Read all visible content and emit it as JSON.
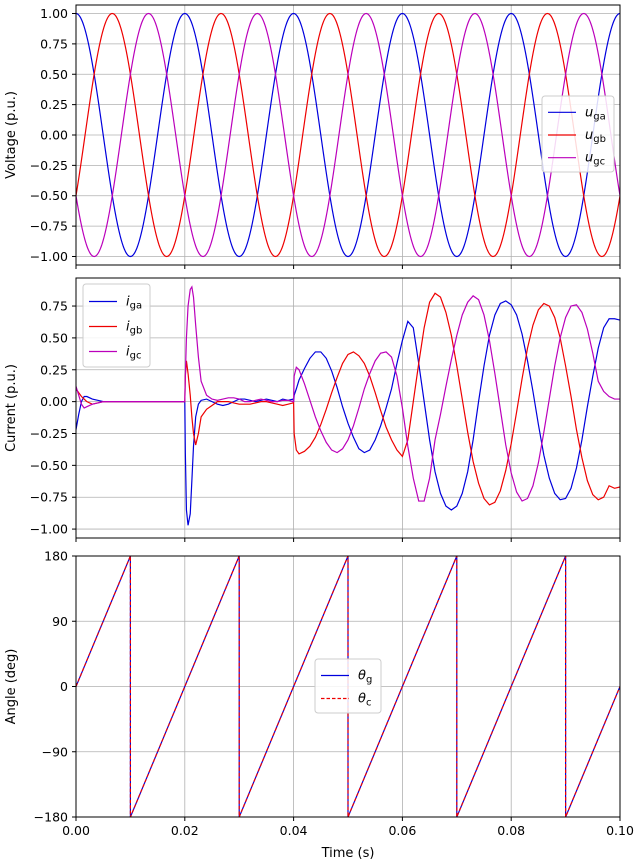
{
  "chart_data": [
    {
      "type": "line",
      "panel": "voltage",
      "ylabel": "Voltage (p.u.)",
      "xlabel": "",
      "xlim": [
        0,
        0.1
      ],
      "ylim": [
        -1.07,
        1.07
      ],
      "xticks": [
        0,
        0.02,
        0.04,
        0.06,
        0.08,
        0.1
      ],
      "xtick_labels": [
        "",
        "",
        "",
        "",
        "",
        ""
      ],
      "yticks": [
        -1,
        -0.75,
        -0.5,
        -0.25,
        0,
        0.25,
        0.5,
        0.75,
        1
      ],
      "ytick_labels": [
        "−1.00",
        "−0.75",
        "−0.50",
        "−0.25",
        "0.00",
        "0.25",
        "0.50",
        "0.75",
        "1.00"
      ],
      "grid": true,
      "legend": "right",
      "series": [
        {
          "name": "u",
          "sub": "ga",
          "color": "#0000dd",
          "dash": false,
          "amplitude": 1.0,
          "frequency_hz": 50,
          "phase_deg": 0
        },
        {
          "name": "u",
          "sub": "gb",
          "color": "#ee0000",
          "dash": false,
          "amplitude": 1.0,
          "frequency_hz": 50,
          "phase_deg": -120
        },
        {
          "name": "u",
          "sub": "gc",
          "color": "#bb00bb",
          "dash": false,
          "amplitude": 1.0,
          "frequency_hz": 50,
          "phase_deg": 120
        }
      ]
    },
    {
      "type": "line",
      "panel": "current",
      "ylabel": "Current (p.u.)",
      "xlabel": "",
      "xlim": [
        0,
        0.1
      ],
      "ylim": [
        -1.07,
        0.97
      ],
      "xticks": [
        0,
        0.02,
        0.04,
        0.06,
        0.08,
        0.1
      ],
      "xtick_labels": [
        "",
        "",
        "",
        "",
        "",
        ""
      ],
      "yticks": [
        -1,
        -0.75,
        -0.5,
        -0.25,
        0,
        0.25,
        0.5,
        0.75
      ],
      "ytick_labels": [
        "−1.00",
        "−0.75",
        "−0.50",
        "−0.25",
        "0.00",
        "0.25",
        "0.50",
        "0.75"
      ],
      "grid": true,
      "legend": "top-left",
      "series": [
        {
          "name": "i",
          "sub": "ga",
          "color": "#0000dd",
          "dash": false,
          "x": [
            0,
            0.0005,
            0.001,
            0.0015,
            0.002,
            0.003,
            0.004,
            0.005,
            0.006,
            0.008,
            0.01,
            0.015,
            0.02,
            0.0201,
            0.0203,
            0.0206,
            0.021,
            0.0213,
            0.0216,
            0.022,
            0.0225,
            0.023,
            0.024,
            0.025,
            0.026,
            0.027,
            0.028,
            0.029,
            0.03,
            0.031,
            0.032,
            0.033,
            0.034,
            0.035,
            0.036,
            0.037,
            0.038,
            0.039,
            0.0399,
            0.04,
            0.0401,
            0.0405,
            0.041,
            0.042,
            0.043,
            0.044,
            0.045,
            0.046,
            0.047,
            0.048,
            0.049,
            0.05,
            0.051,
            0.052,
            0.053,
            0.054,
            0.055,
            0.056,
            0.057,
            0.058,
            0.059,
            0.06,
            0.061,
            0.062,
            0.063,
            0.064,
            0.065,
            0.066,
            0.067,
            0.068,
            0.069,
            0.07,
            0.071,
            0.072,
            0.073,
            0.074,
            0.075,
            0.076,
            0.077,
            0.078,
            0.079,
            0.08,
            0.081,
            0.082,
            0.083,
            0.084,
            0.085,
            0.086,
            0.087,
            0.088,
            0.089,
            0.09,
            0.091,
            0.092,
            0.093,
            0.094,
            0.095,
            0.096,
            0.097,
            0.098,
            0.099,
            0.1
          ],
          "y": [
            -0.22,
            -0.1,
            0.0,
            0.04,
            0.04,
            0.02,
            0.01,
            0.0,
            0.0,
            0.0,
            0.0,
            0.0,
            0.0,
            -0.4,
            -0.85,
            -0.97,
            -0.88,
            -0.62,
            -0.35,
            -0.12,
            -0.02,
            0.01,
            0.02,
            0.0,
            -0.02,
            -0.03,
            -0.02,
            0.0,
            0.02,
            0.02,
            0.01,
            0.0,
            0.01,
            0.02,
            0.01,
            0.0,
            0.02,
            0.01,
            0.02,
            0.0,
            0.05,
            0.1,
            0.17,
            0.26,
            0.34,
            0.39,
            0.39,
            0.34,
            0.24,
            0.11,
            -0.04,
            -0.17,
            -0.28,
            -0.37,
            -0.4,
            -0.38,
            -0.3,
            -0.19,
            -0.05,
            0.1,
            0.3,
            0.48,
            0.63,
            0.58,
            0.3,
            0.0,
            -0.3,
            -0.55,
            -0.72,
            -0.82,
            -0.85,
            -0.82,
            -0.72,
            -0.55,
            -0.3,
            0.0,
            0.28,
            0.52,
            0.68,
            0.77,
            0.79,
            0.76,
            0.68,
            0.53,
            0.32,
            0.08,
            -0.18,
            -0.42,
            -0.6,
            -0.72,
            -0.77,
            -0.76,
            -0.68,
            -0.52,
            -0.3,
            -0.04,
            0.2,
            0.42,
            0.58,
            0.65,
            0.65,
            0.64
          ]
        },
        {
          "name": "i",
          "sub": "gb",
          "color": "#ee0000",
          "dash": false,
          "x": [
            0,
            0.0005,
            0.001,
            0.0015,
            0.002,
            0.003,
            0.004,
            0.005,
            0.006,
            0.008,
            0.01,
            0.015,
            0.02,
            0.0201,
            0.0203,
            0.0206,
            0.021,
            0.0213,
            0.0216,
            0.022,
            0.0225,
            0.023,
            0.024,
            0.025,
            0.026,
            0.027,
            0.028,
            0.029,
            0.03,
            0.031,
            0.032,
            0.033,
            0.034,
            0.035,
            0.036,
            0.037,
            0.038,
            0.039,
            0.0399,
            0.04,
            0.0401,
            0.0405,
            0.041,
            0.042,
            0.043,
            0.044,
            0.045,
            0.046,
            0.047,
            0.048,
            0.049,
            0.05,
            0.051,
            0.052,
            0.053,
            0.054,
            0.055,
            0.056,
            0.057,
            0.058,
            0.059,
            0.06,
            0.061,
            0.062,
            0.063,
            0.064,
            0.065,
            0.066,
            0.067,
            0.068,
            0.069,
            0.07,
            0.071,
            0.072,
            0.073,
            0.074,
            0.075,
            0.076,
            0.077,
            0.078,
            0.079,
            0.08,
            0.081,
            0.082,
            0.083,
            0.084,
            0.085,
            0.086,
            0.087,
            0.088,
            0.089,
            0.09,
            0.091,
            0.092,
            0.093,
            0.094,
            0.095,
            0.096,
            0.097,
            0.098,
            0.099,
            0.1
          ],
          "y": [
            0.1,
            0.07,
            0.04,
            0.02,
            0.0,
            -0.02,
            -0.01,
            0.0,
            0.0,
            0.0,
            0.0,
            0.0,
            0.0,
            0.2,
            0.32,
            0.22,
            0.05,
            -0.12,
            -0.25,
            -0.34,
            -0.25,
            -0.12,
            -0.06,
            -0.03,
            0.0,
            0.0,
            0.0,
            -0.01,
            -0.02,
            -0.02,
            -0.02,
            -0.01,
            0.0,
            0.0,
            -0.01,
            -0.02,
            -0.03,
            -0.02,
            -0.01,
            0.0,
            -0.25,
            -0.38,
            -0.41,
            -0.39,
            -0.35,
            -0.28,
            -0.18,
            -0.06,
            0.07,
            0.19,
            0.3,
            0.37,
            0.39,
            0.36,
            0.3,
            0.2,
            0.07,
            -0.07,
            -0.2,
            -0.3,
            -0.38,
            -0.43,
            -0.3,
            -0.0,
            0.3,
            0.58,
            0.78,
            0.85,
            0.82,
            0.7,
            0.52,
            0.28,
            0.02,
            -0.24,
            -0.47,
            -0.64,
            -0.76,
            -0.81,
            -0.79,
            -0.7,
            -0.54,
            -0.33,
            -0.08,
            0.18,
            0.42,
            0.6,
            0.72,
            0.77,
            0.75,
            0.66,
            0.5,
            0.28,
            0.04,
            -0.22,
            -0.44,
            -0.62,
            -0.73,
            -0.77,
            -0.75,
            -0.66,
            -0.68,
            -0.67
          ]
        },
        {
          "name": "i",
          "sub": "gc",
          "color": "#bb00bb",
          "dash": false,
          "x": [
            0,
            0.0005,
            0.001,
            0.0015,
            0.002,
            0.003,
            0.004,
            0.005,
            0.006,
            0.008,
            0.01,
            0.015,
            0.02,
            0.0201,
            0.0203,
            0.0206,
            0.021,
            0.0213,
            0.0216,
            0.022,
            0.0225,
            0.023,
            0.024,
            0.025,
            0.026,
            0.027,
            0.028,
            0.029,
            0.03,
            0.031,
            0.032,
            0.033,
            0.034,
            0.035,
            0.036,
            0.037,
            0.038,
            0.039,
            0.0399,
            0.04,
            0.0401,
            0.0405,
            0.041,
            0.042,
            0.043,
            0.044,
            0.045,
            0.046,
            0.047,
            0.048,
            0.049,
            0.05,
            0.051,
            0.052,
            0.053,
            0.054,
            0.055,
            0.056,
            0.057,
            0.058,
            0.059,
            0.06,
            0.061,
            0.062,
            0.063,
            0.064,
            0.065,
            0.066,
            0.067,
            0.068,
            0.069,
            0.07,
            0.071,
            0.072,
            0.073,
            0.074,
            0.075,
            0.076,
            0.077,
            0.078,
            0.079,
            0.08,
            0.081,
            0.082,
            0.083,
            0.084,
            0.085,
            0.086,
            0.087,
            0.088,
            0.089,
            0.09,
            0.091,
            0.092,
            0.093,
            0.094,
            0.095,
            0.096,
            0.097,
            0.098,
            0.099,
            0.1
          ],
          "y": [
            0.12,
            0.05,
            -0.02,
            -0.05,
            -0.04,
            -0.02,
            -0.01,
            0.0,
            0.0,
            0.0,
            0.0,
            0.0,
            0.0,
            0.2,
            0.5,
            0.75,
            0.88,
            0.9,
            0.82,
            0.6,
            0.35,
            0.16,
            0.05,
            0.02,
            0.01,
            0.02,
            0.03,
            0.03,
            0.02,
            0.0,
            0.0,
            0.01,
            0.02,
            0.01,
            0.0,
            0.0,
            0.01,
            0.01,
            0.0,
            0.0,
            0.2,
            0.27,
            0.25,
            0.14,
            0.01,
            -0.12,
            -0.23,
            -0.32,
            -0.38,
            -0.4,
            -0.37,
            -0.3,
            -0.19,
            -0.05,
            0.1,
            0.22,
            0.32,
            0.38,
            0.39,
            0.35,
            0.2,
            -0.05,
            -0.35,
            -0.6,
            -0.78,
            -0.78,
            -0.6,
            -0.3,
            -0.1,
            0.12,
            0.33,
            0.52,
            0.68,
            0.78,
            0.83,
            0.8,
            0.68,
            0.48,
            0.22,
            -0.06,
            -0.34,
            -0.56,
            -0.71,
            -0.78,
            -0.76,
            -0.66,
            -0.48,
            -0.24,
            0.02,
            0.28,
            0.5,
            0.66,
            0.75,
            0.76,
            0.7,
            0.57,
            0.38,
            0.16,
            0.08,
            0.04,
            0.02,
            0.02
          ]
        }
      ]
    },
    {
      "type": "line",
      "panel": "angle",
      "ylabel": "Angle (deg)",
      "xlabel": "Time (s)",
      "xlim": [
        0,
        0.1
      ],
      "ylim": [
        -180,
        180
      ],
      "xticks": [
        0,
        0.02,
        0.04,
        0.06,
        0.08,
        0.1
      ],
      "xtick_labels": [
        "0.00",
        "0.02",
        "0.04",
        "0.06",
        "0.08",
        "0.10"
      ],
      "yticks": [
        -180,
        -90,
        0,
        90,
        180
      ],
      "ytick_labels": [
        "−180",
        "−90",
        "0",
        "90",
        "180"
      ],
      "grid": true,
      "legend": "center",
      "series": [
        {
          "name": "θ",
          "sub": "g",
          "color": "#0000dd",
          "dash": false,
          "x": [
            0,
            0.01,
            0.01,
            0.03,
            0.03,
            0.05,
            0.05,
            0.07,
            0.07,
            0.09,
            0.09,
            0.1
          ],
          "y": [
            0,
            180,
            -180,
            180,
            -180,
            180,
            -180,
            180,
            -180,
            180,
            -180,
            0
          ]
        },
        {
          "name": "θ",
          "sub": "c",
          "color": "#ee0000",
          "dash": true,
          "x": [
            0,
            0.01,
            0.01,
            0.03,
            0.03,
            0.05,
            0.05,
            0.07,
            0.07,
            0.09,
            0.09,
            0.1
          ],
          "y": [
            0,
            180,
            -180,
            180,
            -180,
            180,
            -180,
            180,
            -180,
            180,
            -180,
            0
          ]
        }
      ]
    }
  ]
}
